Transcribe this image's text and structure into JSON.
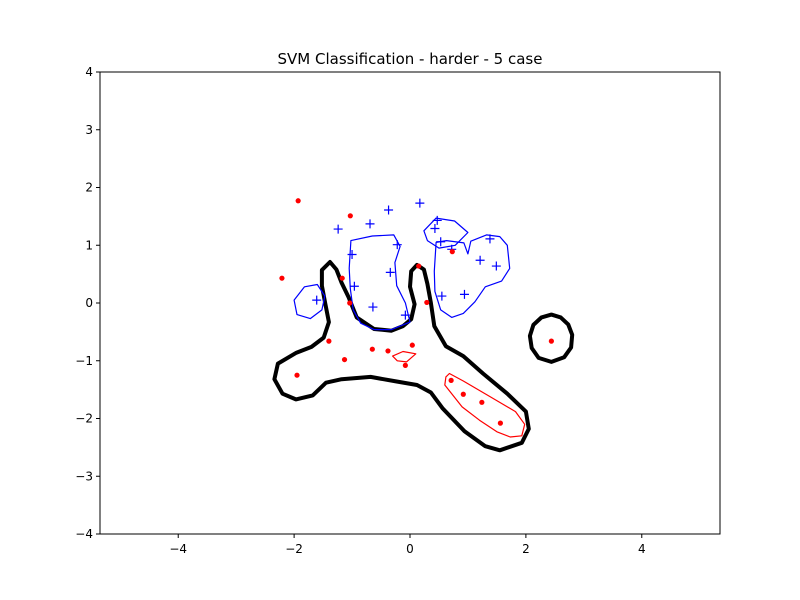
{
  "chart_data": {
    "type": "scatter",
    "title": "SVM Classification - harder - 5 case",
    "xlabel": "",
    "ylabel": "",
    "xlim": [
      -5.35,
      5.35
    ],
    "ylim": [
      -4,
      4
    ],
    "x_ticks": [
      -4,
      -2,
      0,
      2,
      4
    ],
    "y_ticks": [
      -4,
      -3,
      -2,
      -1,
      0,
      1,
      2,
      3,
      4
    ],
    "x_tick_labels": [
      "−4",
      "−2",
      "0",
      "2",
      "4"
    ],
    "y_tick_labels": [
      "−4",
      "−3",
      "−2",
      "−1",
      "0",
      "1",
      "2",
      "3",
      "4"
    ],
    "grid": false,
    "colors": {
      "positive": "#0000ff",
      "negative": "#ff0000",
      "boundary": "#000000"
    },
    "series": [
      {
        "marker": "plus",
        "color": "#0000ff",
        "points": [
          [
            0.17,
            1.73
          ],
          [
            -0.37,
            1.61
          ],
          [
            -0.69,
            1.37
          ],
          [
            -1.24,
            1.28
          ],
          [
            0.47,
            1.43
          ],
          [
            0.43,
            1.29
          ],
          [
            0.53,
            1.06
          ],
          [
            0.72,
            0.93
          ],
          [
            1.38,
            1.11
          ],
          [
            -0.22,
            1.01
          ],
          [
            -1.0,
            0.84
          ],
          [
            -0.34,
            0.53
          ],
          [
            1.21,
            0.74
          ],
          [
            1.49,
            0.64
          ],
          [
            -0.96,
            0.29
          ],
          [
            -1.61,
            0.05
          ],
          [
            -0.64,
            -0.07
          ],
          [
            0.55,
            0.12
          ],
          [
            0.94,
            0.15
          ],
          [
            -0.08,
            -0.21
          ]
        ]
      },
      {
        "marker": "dot",
        "color": "#ff0000",
        "points": [
          [
            -1.93,
            1.77
          ],
          [
            -1.03,
            1.51
          ],
          [
            0.73,
            0.89
          ],
          [
            0.15,
            0.64
          ],
          [
            -2.21,
            0.43
          ],
          [
            -1.17,
            0.43
          ],
          [
            -1.04,
            0.0
          ],
          [
            0.29,
            0.01
          ],
          [
            -1.4,
            -0.66
          ],
          [
            0.04,
            -0.73
          ],
          [
            -0.65,
            -0.8
          ],
          [
            -0.38,
            -0.83
          ],
          [
            -1.13,
            -0.98
          ],
          [
            -0.08,
            -1.08
          ],
          [
            2.44,
            -0.66
          ],
          [
            -1.95,
            -1.25
          ],
          [
            0.71,
            -1.34
          ],
          [
            0.92,
            -1.58
          ],
          [
            1.24,
            -1.72
          ],
          [
            1.56,
            -2.08
          ]
        ]
      }
    ],
    "contours": [
      {
        "level": "decision boundary",
        "color": "#000000",
        "path": [
          [
            -1.52,
            0.57
          ],
          [
            -1.38,
            0.71
          ],
          [
            -1.27,
            0.58
          ],
          [
            -1.18,
            0.35
          ],
          [
            -1.06,
            0.1
          ],
          [
            -0.92,
            -0.25
          ],
          [
            -0.62,
            -0.45
          ],
          [
            -0.32,
            -0.48
          ],
          [
            -0.12,
            -0.4
          ],
          [
            0.02,
            -0.28
          ],
          [
            0.08,
            -0.02
          ],
          [
            0.0,
            0.28
          ],
          [
            0.02,
            0.55
          ],
          [
            0.12,
            0.66
          ],
          [
            0.24,
            0.58
          ],
          [
            0.3,
            0.33
          ],
          [
            0.36,
            0.0
          ],
          [
            0.42,
            -0.4
          ],
          [
            0.62,
            -0.75
          ],
          [
            0.92,
            -0.92
          ],
          [
            1.26,
            -1.22
          ],
          [
            1.68,
            -1.57
          ],
          [
            2.0,
            -1.88
          ],
          [
            2.05,
            -2.18
          ],
          [
            1.93,
            -2.42
          ],
          [
            1.55,
            -2.55
          ],
          [
            1.3,
            -2.48
          ],
          [
            0.94,
            -2.22
          ],
          [
            0.56,
            -1.82
          ],
          [
            0.36,
            -1.55
          ],
          [
            0.12,
            -1.42
          ],
          [
            -0.23,
            -1.36
          ],
          [
            -0.68,
            -1.28
          ],
          [
            -1.18,
            -1.32
          ],
          [
            -1.45,
            -1.38
          ],
          [
            -1.68,
            -1.6
          ],
          [
            -1.97,
            -1.67
          ],
          [
            -2.2,
            -1.57
          ],
          [
            -2.34,
            -1.32
          ],
          [
            -2.28,
            -1.05
          ],
          [
            -1.96,
            -0.86
          ],
          [
            -1.7,
            -0.76
          ],
          [
            -1.49,
            -0.6
          ],
          [
            -1.4,
            -0.33
          ],
          [
            -1.46,
            -0.02
          ],
          [
            -1.52,
            0.3
          ],
          [
            -1.52,
            0.57
          ]
        ]
      },
      {
        "level": "decision boundary",
        "color": "#000000",
        "path": [
          [
            2.44,
            -0.2
          ],
          [
            2.6,
            -0.25
          ],
          [
            2.73,
            -0.37
          ],
          [
            2.8,
            -0.55
          ],
          [
            2.78,
            -0.77
          ],
          [
            2.66,
            -0.94
          ],
          [
            2.44,
            -1.02
          ],
          [
            2.22,
            -0.95
          ],
          [
            2.1,
            -0.78
          ],
          [
            2.07,
            -0.57
          ],
          [
            2.13,
            -0.38
          ],
          [
            2.27,
            -0.25
          ],
          [
            2.44,
            -0.2
          ]
        ]
      },
      {
        "level": "positive margin",
        "color": "#0000ff",
        "path": [
          [
            -1.02,
            1.08
          ],
          [
            -0.65,
            1.16
          ],
          [
            -0.28,
            1.18
          ],
          [
            -0.17,
            0.98
          ],
          [
            -0.26,
            0.7
          ],
          [
            -0.23,
            0.3
          ],
          [
            -0.08,
            0.0
          ],
          [
            0.0,
            -0.33
          ],
          [
            -0.32,
            -0.46
          ],
          [
            -0.62,
            -0.46
          ],
          [
            -0.85,
            -0.35
          ],
          [
            -0.98,
            -0.12
          ],
          [
            -1.03,
            0.25
          ],
          [
            -1.05,
            0.6
          ],
          [
            -1.02,
            1.08
          ]
        ]
      },
      {
        "level": "positive margin",
        "color": "#0000ff",
        "path": [
          [
            0.24,
            1.25
          ],
          [
            0.45,
            1.47
          ],
          [
            0.77,
            1.42
          ],
          [
            1.0,
            1.22
          ],
          [
            0.78,
            1.0
          ],
          [
            0.5,
            0.95
          ],
          [
            0.3,
            1.08
          ],
          [
            0.24,
            1.25
          ]
        ]
      },
      {
        "level": "positive margin",
        "color": "#0000ff",
        "path": [
          [
            0.45,
            1.05
          ],
          [
            0.63,
            1.08
          ],
          [
            0.93,
            1.04
          ],
          [
            1.0,
            0.85
          ],
          [
            1.05,
            1.07
          ],
          [
            1.32,
            1.18
          ],
          [
            1.55,
            1.15
          ],
          [
            1.68,
            1.0
          ],
          [
            1.72,
            0.6
          ],
          [
            1.58,
            0.38
          ],
          [
            1.3,
            0.28
          ],
          [
            1.12,
            0.02
          ],
          [
            0.92,
            -0.18
          ],
          [
            0.72,
            -0.25
          ],
          [
            0.53,
            -0.12
          ],
          [
            0.43,
            0.2
          ],
          [
            0.42,
            0.55
          ],
          [
            0.45,
            1.05
          ]
        ]
      },
      {
        "level": "positive margin",
        "color": "#0000ff",
        "path": [
          [
            -2.0,
            0.05
          ],
          [
            -1.82,
            0.28
          ],
          [
            -1.6,
            0.32
          ],
          [
            -1.47,
            0.12
          ],
          [
            -1.52,
            -0.12
          ],
          [
            -1.72,
            -0.27
          ],
          [
            -1.95,
            -0.2
          ],
          [
            -2.0,
            0.05
          ]
        ]
      },
      {
        "level": "negative margin",
        "color": "#ff0000",
        "path": [
          [
            -0.3,
            -0.92
          ],
          [
            -0.12,
            -0.84
          ],
          [
            0.1,
            -0.88
          ],
          [
            -0.06,
            -1.02
          ],
          [
            -0.22,
            -1.0
          ],
          [
            -0.3,
            -0.92
          ]
        ]
      },
      {
        "level": "negative margin",
        "color": "#ff0000",
        "path": [
          [
            0.6,
            -1.42
          ],
          [
            0.62,
            -1.28
          ],
          [
            0.68,
            -1.22
          ],
          [
            0.92,
            -1.35
          ],
          [
            1.38,
            -1.62
          ],
          [
            1.82,
            -1.88
          ],
          [
            1.98,
            -2.1
          ],
          [
            1.93,
            -2.3
          ],
          [
            1.73,
            -2.32
          ],
          [
            1.5,
            -2.23
          ],
          [
            1.2,
            -2.03
          ],
          [
            0.9,
            -1.8
          ],
          [
            0.6,
            -1.42
          ]
        ]
      }
    ]
  }
}
